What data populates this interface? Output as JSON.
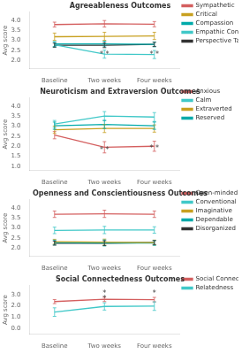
{
  "chart_data": [
    {
      "type": "line",
      "title": "Agreeableness Outcomes",
      "categories": [
        "Baseline",
        "Two weeks",
        "Four weeks"
      ],
      "ylabel": "Avg score",
      "series": [
        {
          "name": "Sympathetic",
          "color": "#d45f5f",
          "values": [
            3.78,
            3.82,
            3.8
          ],
          "errors": [
            0.12,
            0.16,
            0.13
          ]
        },
        {
          "name": "Critical",
          "color": "#c8a020",
          "values": [
            3.18,
            3.2,
            3.22
          ],
          "errors": [
            0.18,
            0.2,
            0.18
          ]
        },
        {
          "name": "Compassion",
          "color": "#00aaaa",
          "values": [
            2.82,
            2.82,
            2.8
          ],
          "errors": [
            0.12,
            0.14,
            0.12
          ]
        },
        {
          "name": "Empathic Concern",
          "color": "#40c8c8",
          "values": [
            2.78,
            2.32,
            2.3
          ],
          "errors": [
            0.12,
            0.2,
            0.2
          ]
        },
        {
          "name": "Perspective Taking",
          "color": "#333333",
          "values": [
            2.76,
            2.76,
            2.8
          ],
          "errors": [
            0.1,
            0.12,
            0.1
          ]
        }
      ],
      "annotations": [
        {
          "x": "Two weeks",
          "y": 2.1,
          "text": "* *"
        },
        {
          "x": "Four weeks",
          "y": 2.1,
          "text": "* *"
        }
      ],
      "ylim": [
        1.6,
        4.4
      ],
      "yticks": [
        {
          "value": 2.0,
          "label": "2.0"
        },
        {
          "value": 2.5,
          "label": "2.5"
        },
        {
          "value": 3.0,
          "label": "3.0"
        },
        {
          "value": 3.5,
          "label": "3.5"
        },
        {
          "value": 4.0,
          "label": "4.0"
        }
      ],
      "grid": false,
      "legend": "right"
    },
    {
      "type": "line",
      "title": "Neuroticism and Extraversion Outcomes",
      "categories": [
        "Baseline",
        "Two weeks",
        "Four weeks"
      ],
      "ylabel": "Avg score",
      "series": [
        {
          "name": "Anxious",
          "color": "#d45f5f",
          "values": [
            2.55,
            1.95,
            2.0
          ],
          "errors": [
            0.18,
            0.28,
            0.25
          ]
        },
        {
          "name": "Calm",
          "color": "#40c8c8",
          "values": [
            3.1,
            3.5,
            3.45
          ],
          "errors": [
            0.18,
            0.22,
            0.22
          ]
        },
        {
          "name": "Extraverted",
          "color": "#c8a020",
          "values": [
            2.82,
            2.88,
            2.88
          ],
          "errors": [
            0.18,
            0.2,
            0.18
          ]
        },
        {
          "name": "Reserved",
          "color": "#00aaaa",
          "values": [
            3.02,
            3.08,
            3.02
          ],
          "errors": [
            0.18,
            0.2,
            0.18
          ]
        }
      ],
      "annotations": [
        {
          "x": "Two weeks",
          "y": 1.6,
          "text": "* *"
        },
        {
          "x": "Four weeks",
          "y": 1.7,
          "text": "* *"
        }
      ],
      "ylim": [
        0.8,
        4.4
      ],
      "yticks": [
        {
          "value": 1.0,
          "label": "1.0"
        },
        {
          "value": 1.5,
          "label": "1.5"
        },
        {
          "value": 2.0,
          "label": "2.0"
        },
        {
          "value": 2.5,
          "label": "2.5"
        },
        {
          "value": 3.0,
          "label": "3.0"
        },
        {
          "value": 3.5,
          "label": "3.5"
        },
        {
          "value": 4.0,
          "label": "4.0"
        }
      ],
      "grid": false,
      "legend": "right"
    },
    {
      "type": "line",
      "title": "Openness and Conscientiousness Outcomes",
      "categories": [
        "Baseline",
        "Two weeks",
        "Four weeks"
      ],
      "ylabel": "Avg score",
      "series": [
        {
          "name": "Open-minded",
          "color": "#d45f5f",
          "values": [
            3.68,
            3.7,
            3.68
          ],
          "errors": [
            0.16,
            0.18,
            0.16
          ]
        },
        {
          "name": "Conventional",
          "color": "#40c8c8",
          "values": [
            2.88,
            2.9,
            2.9
          ],
          "errors": [
            0.16,
            0.18,
            0.16
          ]
        },
        {
          "name": "Imaginative",
          "color": "#c8a020",
          "values": [
            2.32,
            2.3,
            2.28
          ],
          "errors": [
            0.12,
            0.15,
            0.12
          ]
        },
        {
          "name": "Dependable",
          "color": "#00aaaa",
          "values": [
            2.28,
            2.26,
            2.26
          ],
          "errors": [
            0.12,
            0.15,
            0.12
          ]
        },
        {
          "name": "Disorganized",
          "color": "#333333",
          "values": [
            2.25,
            2.25,
            2.28
          ],
          "errors": [
            0.1,
            0.12,
            0.1
          ]
        }
      ],
      "ylim": [
        1.6,
        4.4
      ],
      "yticks": [
        {
          "value": 2.0,
          "label": "2.0"
        },
        {
          "value": 2.5,
          "label": "2.5"
        },
        {
          "value": 3.0,
          "label": "3.0"
        },
        {
          "value": 3.5,
          "label": "3.5"
        },
        {
          "value": 4.0,
          "label": "4.0"
        }
      ],
      "grid": false,
      "legend": "right"
    },
    {
      "type": "line",
      "title": "Social Connectedness Outcomes",
      "categories": [
        "Baseline",
        "Two weeks",
        "Four weeks"
      ],
      "ylabel": "Avg score",
      "series": [
        {
          "name": "Social Connectedness",
          "color": "#d45f5f",
          "values": [
            2.38,
            2.58,
            2.55
          ],
          "errors": [
            0.18,
            0.2,
            0.2
          ]
        },
        {
          "name": "Relatedness",
          "color": "#40c8c8",
          "values": [
            1.45,
            1.95,
            1.98
          ],
          "errors": [
            0.38,
            0.32,
            0.38
          ]
        }
      ],
      "annotations": [
        {
          "x": "Two weeks",
          "y": 2.78,
          "text": "*"
        },
        {
          "x": "Four weeks",
          "y": 2.75,
          "text": "*"
        },
        {
          "x": "Two weeks",
          "y": 2.27,
          "text": "*"
        }
      ],
      "ylim": [
        -0.5,
        3.8
      ],
      "yticks": [
        {
          "value": 0.0,
          "label": "0.0"
        },
        {
          "value": 1.0,
          "label": "1.0"
        },
        {
          "value": 2.0,
          "label": "2.0"
        },
        {
          "value": 3.0,
          "label": "3.0"
        }
      ],
      "grid": false,
      "legend": "right"
    }
  ]
}
